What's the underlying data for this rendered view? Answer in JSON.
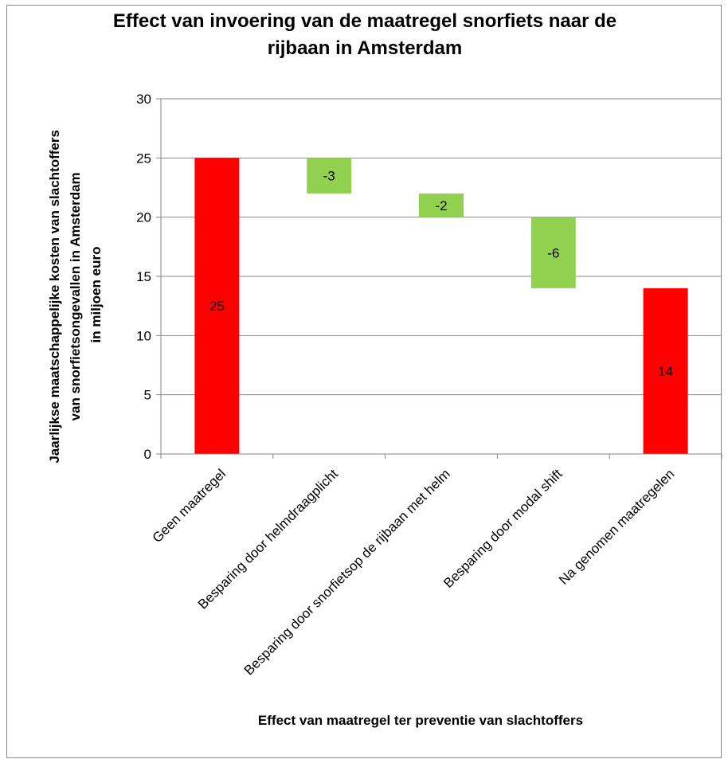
{
  "chart_data": {
    "type": "bar",
    "subtype": "waterfall",
    "title": "Effect van invoering van de maatregel snorfiets naar de rijbaan in Amsterdam",
    "xlabel": "Effect van maatregel ter preventie van slachtoffers",
    "ylabel_lines": [
      "Jaarlijkse maatschappelijke kosten van slachtoffers",
      "van snorfietsongevallen in Amsterdam",
      "in miljoen euro"
    ],
    "ylim": [
      0,
      30
    ],
    "yticks": [
      0,
      5,
      10,
      15,
      20,
      25,
      30
    ],
    "grid": true,
    "legend": "none",
    "categories": [
      "Geen maatregel",
      "Besparing door helmdraagplicht",
      "Besparing door snorfietsop de rijbaan met helm",
      "Besparing door modal shift",
      "Na genomen maatregelen"
    ],
    "bars": [
      {
        "base": 0,
        "top": 25,
        "label": "25",
        "kind": "total"
      },
      {
        "base": 22,
        "top": 25,
        "label": "-3",
        "kind": "decrease"
      },
      {
        "base": 20,
        "top": 22,
        "label": "-2",
        "kind": "decrease"
      },
      {
        "base": 14,
        "top": 20,
        "label": "-6",
        "kind": "decrease"
      },
      {
        "base": 0,
        "top": 14,
        "label": "14",
        "kind": "total"
      }
    ],
    "colors": {
      "total": "#ff0000",
      "decrease": "#92d050",
      "grid": "#868686",
      "axis": "#868686"
    }
  }
}
